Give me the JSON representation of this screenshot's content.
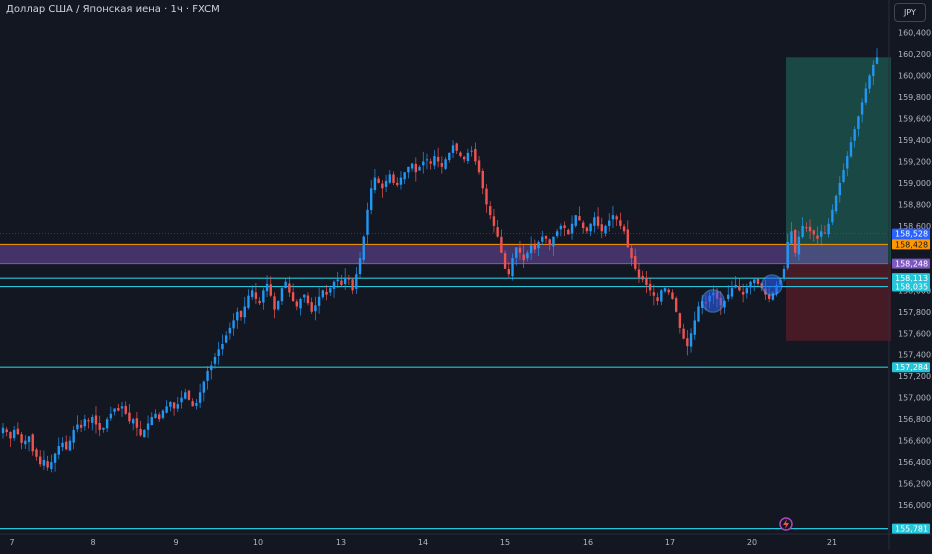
{
  "header": {
    "title": "Доллар США / Японская иена · 1ч · FXCM",
    "currency_button": "JPY"
  },
  "colors": {
    "bg": "#131722",
    "up": "#2196f3",
    "down": "#ef5350",
    "cyan": "#26c6da",
    "orange": "#ff9800",
    "purple": "#7e57c2",
    "green_zone": "#1e5a50",
    "red_zone": "#5a1e28"
  },
  "chart_data": {
    "type": "candlestick",
    "ylim": [
      155.74,
      160.48
    ],
    "y_ticks": [
      "160,400",
      "160,200",
      "160,000",
      "159,800",
      "159,600",
      "159,400",
      "159,200",
      "159,000",
      "158,800",
      "158,600",
      "158,000",
      "157,800",
      "157,600",
      "157,400",
      "157,200",
      "157,000",
      "156,800",
      "156,600",
      "156,400",
      "156,200",
      "156,000"
    ],
    "x_ticks": [
      "7",
      "8",
      "9",
      "10",
      "13",
      "14",
      "15",
      "16",
      "17",
      "20",
      "21"
    ],
    "horizontal_levels": [
      {
        "value": 158.428,
        "color": "orange"
      },
      {
        "value": 158.248,
        "color": "purple"
      },
      {
        "value": 158.113,
        "color": "cyan"
      },
      {
        "value": 158.035,
        "color": "cyan"
      },
      {
        "value": 157.284,
        "color": "cyan"
      },
      {
        "value": 155.781,
        "color": "cyan"
      }
    ],
    "price_tags": [
      {
        "value": 158.528,
        "label": "158,528",
        "sub": "53:41",
        "color": "#2962ff"
      },
      {
        "value": 158.428,
        "label": "158,428",
        "color": "#ff9800"
      },
      {
        "value": 158.248,
        "label": "158,248",
        "color": "#7e57c2"
      },
      {
        "value": 158.113,
        "label": "158,113",
        "color": "#26c6da"
      },
      {
        "value": 158.035,
        "label": "158,035",
        "color": "#26c6da"
      },
      {
        "value": 157.284,
        "label": "157,284",
        "color": "#26c6da"
      },
      {
        "value": 155.781,
        "label": "155,781",
        "color": "#26c6da"
      }
    ],
    "position": {
      "entry": 158.248,
      "target": 160.17,
      "stop": 157.53
    },
    "closes": [
      156.72,
      156.68,
      156.62,
      156.7,
      156.66,
      156.58,
      156.6,
      156.64,
      156.5,
      156.45,
      156.38,
      156.42,
      156.35,
      156.4,
      156.48,
      156.55,
      156.58,
      156.52,
      156.6,
      156.7,
      156.75,
      156.72,
      156.8,
      156.78,
      156.82,
      156.75,
      156.7,
      156.72,
      156.8,
      156.85,
      156.9,
      156.88,
      156.92,
      156.85,
      156.78,
      156.8,
      156.72,
      156.65,
      156.7,
      156.76,
      156.82,
      156.85,
      156.8,
      156.88,
      156.92,
      156.96,
      156.9,
      156.94,
      157.0,
      157.05,
      156.98,
      156.92,
      156.95,
      157.05,
      157.15,
      157.25,
      157.3,
      157.38,
      157.45,
      157.5,
      157.58,
      157.65,
      157.72,
      157.8,
      157.75,
      157.85,
      157.95,
      158.0,
      157.92,
      157.88,
      158.0,
      158.06,
      157.95,
      157.82,
      157.9,
      158.02,
      158.08,
      157.98,
      157.9,
      157.85,
      157.92,
      157.96,
      157.88,
      157.8,
      157.86,
      157.94,
      158.0,
      157.96,
      158.02,
      158.08,
      158.1,
      158.05,
      158.12,
      158.1,
      158.0,
      158.15,
      158.3,
      158.5,
      158.75,
      158.95,
      159.05,
      159.0,
      158.95,
      159.02,
      159.08,
      159.0,
      158.98,
      159.05,
      159.1,
      159.15,
      159.18,
      159.1,
      159.15,
      159.2,
      159.22,
      159.18,
      159.25,
      159.2,
      159.15,
      159.22,
      159.28,
      159.35,
      159.3,
      159.25,
      159.22,
      159.28,
      159.3,
      159.2,
      159.1,
      158.95,
      158.8,
      158.7,
      158.6,
      158.5,
      158.35,
      158.2,
      158.15,
      158.3,
      158.4,
      158.35,
      158.28,
      158.35,
      158.42,
      158.38,
      158.45,
      158.5,
      158.48,
      158.42,
      158.5,
      158.55,
      158.6,
      158.58,
      158.52,
      158.62,
      158.7,
      158.65,
      158.58,
      158.55,
      158.62,
      158.68,
      158.6,
      158.55,
      158.6,
      158.65,
      158.7,
      158.66,
      158.6,
      158.55,
      158.4,
      158.3,
      158.2,
      158.12,
      158.1,
      158.05,
      158.0,
      157.95,
      157.9,
      158.0,
      158.02,
      157.98,
      157.92,
      157.8,
      157.65,
      157.55,
      157.48,
      157.6,
      157.72,
      157.85,
      157.9,
      157.88,
      157.95,
      157.98,
      157.92,
      157.86,
      157.9,
      157.96,
      158.02,
      158.05,
      158.0,
      157.96,
      158.02,
      158.08,
      158.1,
      158.06,
      158.02,
      157.96,
      157.92,
      157.98,
      158.05,
      158.1,
      158.2,
      158.45,
      158.55,
      158.35,
      158.5,
      158.6,
      158.58,
      158.55,
      158.52,
      158.48,
      158.55,
      158.528,
      158.62,
      158.75,
      158.88,
      159.0,
      159.12,
      159.25,
      159.38,
      159.5,
      159.62,
      159.75,
      159.88,
      160.0,
      160.1,
      160.17
    ]
  }
}
